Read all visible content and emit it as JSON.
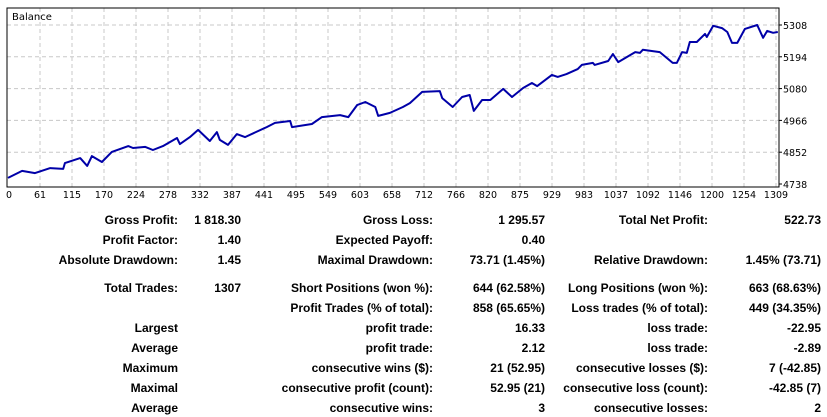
{
  "chart_data": {
    "type": "line",
    "title": "Balance",
    "xlabel": "",
    "ylabel": "",
    "x_ticks": [
      "0",
      "61",
      "115",
      "170",
      "224",
      "278",
      "332",
      "387",
      "441",
      "495",
      "549",
      "603",
      "658",
      "712",
      "766",
      "820",
      "875",
      "929",
      "983",
      "1037",
      "1092",
      "1146",
      "1200",
      "1254",
      "1309"
    ],
    "y_ticks": [
      4738,
      4852,
      4966,
      5080,
      5194,
      5308
    ],
    "xlim": [
      0,
      1309
    ],
    "ylim": [
      4738,
      5308
    ],
    "grid": true,
    "colors": {
      "line": "#0000a8",
      "grid": "#c8c8c8"
    },
    "series": [
      {
        "name": "Balance",
        "x": [
          0,
          24,
          46,
          72,
          94,
          97,
          123,
          135,
          143,
          160,
          177,
          205,
          213,
          234,
          247,
          264,
          288,
          293,
          310,
          324,
          344,
          356,
          361,
          375,
          390,
          404,
          441,
          455,
          481,
          484,
          518,
          535,
          566,
          580,
          595,
          609,
          626,
          631,
          651,
          673,
          685,
          706,
          736,
          740,
          758,
          774,
          787,
          794,
          808,
          822,
          844,
          859,
          878,
          893,
          902,
          927,
          937,
          952,
          971,
          978,
          997,
          1000,
          1023,
          1031,
          1040,
          1069,
          1077,
          1082,
          1111,
          1133,
          1140,
          1149,
          1157,
          1162,
          1174,
          1188,
          1191,
          1202,
          1217,
          1226,
          1234,
          1243,
          1256,
          1277,
          1287,
          1294,
          1304,
          1312
        ],
        "y": [
          4760,
          4785,
          4777,
          4795,
          4792,
          4813,
          4831,
          4803,
          4838,
          4817,
          4853,
          4874,
          4867,
          4871,
          4860,
          4874,
          4903,
          4881,
          4906,
          4932,
          4892,
          4924,
          4896,
          4878,
          4917,
          4906,
          4942,
          4957,
          4964,
          4942,
          4953,
          4978,
          4985,
          4978,
          5021,
          5032,
          5014,
          4982,
          4993,
          5014,
          5028,
          5068,
          5071,
          5046,
          5014,
          5050,
          5057,
          5000,
          5039,
          5039,
          5079,
          5050,
          5082,
          5100,
          5089,
          5129,
          5122,
          5132,
          5150,
          5165,
          5172,
          5165,
          5179,
          5204,
          5175,
          5211,
          5208,
          5219,
          5211,
          5172,
          5172,
          5211,
          5208,
          5247,
          5247,
          5276,
          5265,
          5305,
          5297,
          5283,
          5244,
          5244,
          5294,
          5308,
          5262,
          5287,
          5280,
          5283
        ]
      }
    ]
  },
  "stats": {
    "gross_profit": {
      "label": "Gross Profit:",
      "value": "1 818.30"
    },
    "gross_loss": {
      "label": "Gross Loss:",
      "value": "1 295.57"
    },
    "total_net_profit": {
      "label": "Total Net Profit:",
      "value": "522.73"
    },
    "profit_factor": {
      "label": "Profit Factor:",
      "value": "1.40"
    },
    "expected_payoff": {
      "label": "Expected Payoff:",
      "value": "0.40"
    },
    "absolute_drawdown": {
      "label": "Absolute Drawdown:",
      "value": "1.45"
    },
    "maximal_drawdown": {
      "label": "Maximal Drawdown:",
      "value": "73.71 (1.45%)"
    },
    "relative_drawdown": {
      "label": "Relative Drawdown:",
      "value": "1.45% (73.71)"
    },
    "total_trades": {
      "label": "Total Trades:",
      "value": "1307"
    },
    "short_positions": {
      "label": "Short Positions (won %):",
      "value": "644 (62.58%)"
    },
    "long_positions": {
      "label": "Long Positions (won %):",
      "value": "663 (68.63%)"
    },
    "profit_trades": {
      "label": "Profit Trades (% of total):",
      "value": "858 (65.65%)"
    },
    "loss_trades": {
      "label": "Loss trades (% of total):",
      "value": "449 (34.35%)"
    },
    "largest": {
      "label": "Largest",
      "profit_label": "profit trade:",
      "profit_value": "16.33",
      "loss_label": "loss trade:",
      "loss_value": "-22.95"
    },
    "average": {
      "label": "Average",
      "profit_label": "profit trade:",
      "profit_value": "2.12",
      "loss_label": "loss trade:",
      "loss_value": "-2.89"
    },
    "maximum": {
      "label": "Maximum",
      "profit_label": "consecutive wins ($):",
      "profit_value": "21 (52.95)",
      "loss_label": "consecutive losses ($):",
      "loss_value": "7 (-42.85)"
    },
    "maximal": {
      "label": "Maximal",
      "profit_label": "consecutive profit (count):",
      "profit_value": "52.95 (21)",
      "loss_label": "consecutive loss (count):",
      "loss_value": "-42.85 (7)"
    },
    "average_consecutive": {
      "label": "Average",
      "profit_label": "consecutive wins:",
      "profit_value": "3",
      "loss_label": "consecutive losses:",
      "loss_value": "2"
    }
  }
}
